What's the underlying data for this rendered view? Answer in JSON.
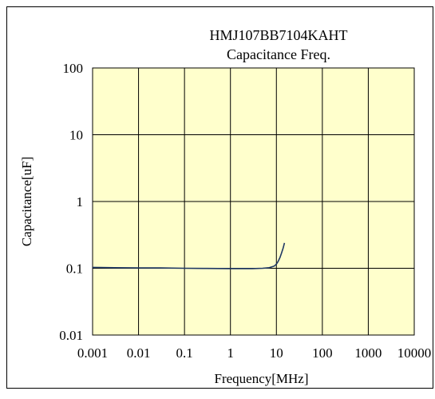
{
  "chart_data": {
    "type": "line",
    "title": "HMJ107BB7104KAHT",
    "subtitle": "Capacitance Freq.",
    "xlabel": "Frequency[MHz]",
    "ylabel": "Capacitance[uF]",
    "x_scale": "log",
    "y_scale": "log",
    "xlim": [
      0.001,
      10000
    ],
    "ylim": [
      0.01,
      100
    ],
    "x_ticks": [
      0.001,
      0.01,
      0.1,
      1,
      10,
      100,
      1000,
      10000
    ],
    "x_tick_labels": [
      "0.001",
      "0.01",
      "0.1",
      "1",
      "10",
      "100",
      "1000",
      "10000"
    ],
    "y_ticks": [
      0.01,
      0.1,
      1,
      10,
      100
    ],
    "y_tick_labels": [
      "0.01",
      "0.1",
      "1",
      "10",
      "100"
    ],
    "grid": true,
    "legend": "none",
    "colors": {
      "plot_background": "#FFFFCC",
      "grid": "#000000",
      "series_line": "#1F3864"
    },
    "series": [
      {
        "x": [
          0.001,
          0.003,
          0.01,
          0.03,
          0.1,
          0.3,
          1,
          2,
          3,
          5,
          7,
          9,
          10,
          11,
          12,
          13,
          14,
          15
        ],
        "values": [
          0.103,
          0.102,
          0.1015,
          0.101,
          0.1,
          0.0995,
          0.099,
          0.0988,
          0.099,
          0.1,
          0.102,
          0.108,
          0.115,
          0.128,
          0.145,
          0.17,
          0.2,
          0.24
        ]
      }
    ]
  }
}
